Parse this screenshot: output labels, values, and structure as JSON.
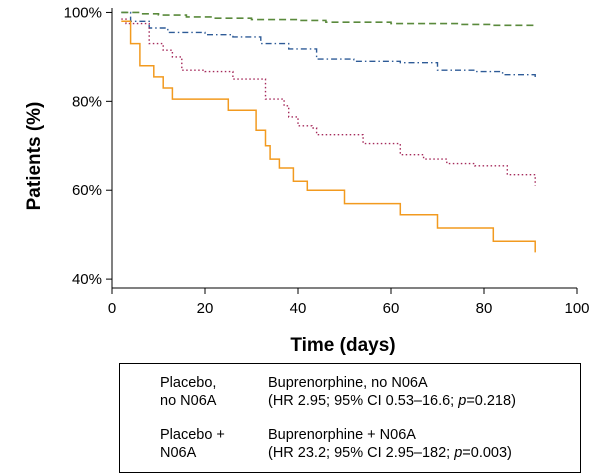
{
  "chart_data": {
    "type": "line",
    "title": "",
    "xlabel": "Time (days)",
    "ylabel": "Patients (%)",
    "xlim": [
      0,
      100
    ],
    "ylim": [
      38,
      101
    ],
    "xticks": [
      "0",
      "20",
      "40",
      "60",
      "80",
      "100"
    ],
    "xtick_values": [
      0,
      20,
      40,
      60,
      80,
      100
    ],
    "yticks": [
      "40%",
      "60%",
      "80%",
      "100%"
    ],
    "ytick_values": [
      40,
      60,
      80,
      100
    ],
    "grid": false,
    "legend_position": "bottom",
    "series": [
      {
        "name": "Placebo, no N06A",
        "note": "",
        "color": "#2e5b97",
        "style": "dashdot",
        "x": [
          2,
          4,
          8,
          12,
          16,
          20,
          26,
          32,
          38,
          44,
          52,
          62,
          70,
          78,
          84,
          91
        ],
        "y": [
          100,
          98,
          96.5,
          95.5,
          95.5,
          95,
          94.5,
          93,
          91.8,
          89.5,
          89,
          88.7,
          87,
          86.7,
          86,
          85
        ]
      },
      {
        "name": "Buprenorphine, no N06A",
        "note": "(HR 2.95; 95% CI 0.53–16.6; p=0.218)",
        "color": "#a52a5b",
        "style": "dotted",
        "x": [
          2,
          3,
          8,
          11,
          13,
          15,
          20,
          26,
          33,
          37,
          38,
          40,
          43,
          44,
          46,
          54,
          62,
          67,
          72,
          78,
          85,
          91
        ],
        "y": [
          98.5,
          97.5,
          93,
          91.5,
          90,
          87,
          86.7,
          85,
          80.5,
          79,
          76.5,
          74.5,
          74,
          72.5,
          72.5,
          70.5,
          68,
          67,
          66,
          65.5,
          63.5,
          61
        ]
      },
      {
        "name": "Placebo + N06A",
        "note": "",
        "color": "#5a8a3c",
        "style": "dashed",
        "x": [
          2,
          6,
          10,
          16,
          22,
          30,
          40,
          46,
          60,
          75,
          82,
          91
        ],
        "y": [
          100,
          99.7,
          99.4,
          99,
          98.7,
          98.4,
          98.2,
          97.8,
          97.5,
          97.3,
          97.1,
          97
        ]
      },
      {
        "name": "Buprenorphine + N06A",
        "note": "(HR 23.2; 95% CI 2.95–182; p=0.003)",
        "color": "#f29a1f",
        "style": "solid",
        "x": [
          2,
          4,
          6,
          9,
          11,
          13,
          15,
          25,
          31,
          33,
          34,
          36,
          39,
          42,
          50,
          62,
          70,
          82,
          91
        ],
        "y": [
          98,
          93,
          88,
          85.5,
          83,
          80.5,
          80.5,
          78,
          73.5,
          70,
          67,
          65,
          62,
          60,
          57,
          54.5,
          51.5,
          48.5,
          46
        ]
      }
    ]
  },
  "legend": {
    "items": [
      {
        "line1": "Placebo,",
        "line2": "no N06A"
      },
      {
        "line1": "Buprenorphine, no N06A",
        "line2_pre": "(HR 2.95; 95% CI 0.53–16.6; ",
        "p": "p",
        "line2_post": "=0.218)"
      },
      {
        "line1": "Placebo +",
        "line2": "N06A"
      },
      {
        "line1": "Buprenorphine + N06A",
        "line2_pre": "(HR 23.2; 95% CI 2.95–182; ",
        "p": "p",
        "line2_post": "=0.003)"
      }
    ]
  }
}
